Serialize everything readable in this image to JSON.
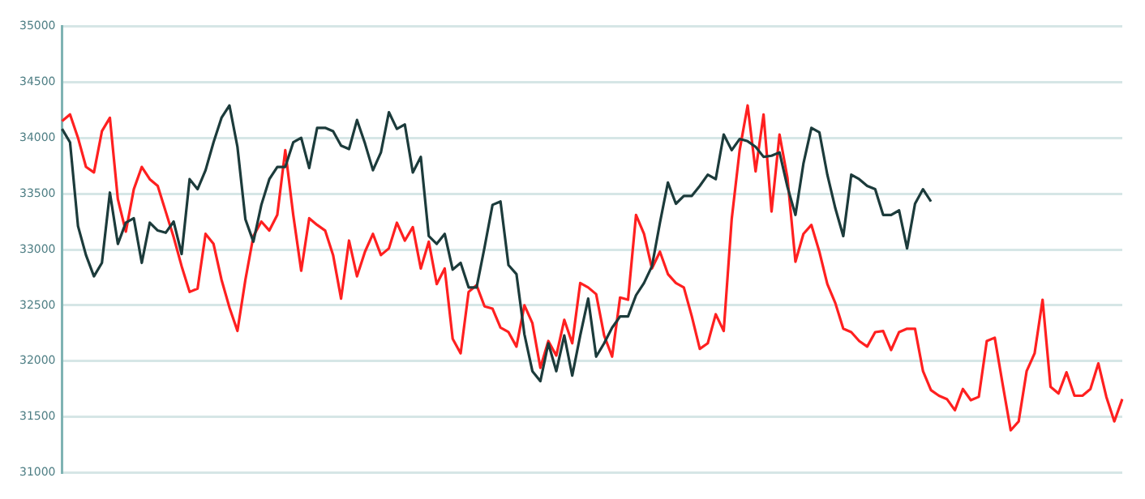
{
  "chart_data": {
    "type": "line",
    "categories": [
      null,
      null,
      null,
      null,
      null,
      null,
      null,
      null,
      null,
      null,
      null,
      null,
      null,
      null,
      null,
      null,
      null,
      null,
      null,
      null,
      null,
      null,
      null,
      null,
      null,
      null,
      null,
      null,
      null,
      null,
      null,
      null,
      null,
      null,
      null,
      null,
      null,
      null,
      null,
      null,
      null,
      null,
      null,
      null,
      null,
      null,
      null,
      null,
      null,
      null,
      null,
      null,
      null,
      null,
      null,
      null,
      null,
      null,
      null,
      null,
      null,
      null,
      null,
      null,
      null,
      null,
      null,
      null,
      null,
      null,
      null,
      null,
      null,
      null,
      null,
      null,
      null,
      null,
      null,
      null,
      null,
      null,
      null,
      null,
      null,
      null,
      null,
      null,
      null,
      null,
      null,
      null,
      null,
      null,
      null,
      null,
      null,
      null,
      null,
      null,
      null,
      null,
      null,
      null,
      null,
      null,
      null,
      null,
      null,
      null,
      null,
      null,
      null,
      null,
      null,
      null,
      null,
      null,
      null,
      null,
      null,
      null,
      null,
      null,
      null,
      null,
      null,
      null,
      null,
      null,
      null,
      null,
      null,
      null
    ],
    "series": [
      {
        "color": "#1c3b3b",
        "values": [
          34080,
          33960,
          33210,
          32950,
          32760,
          32880,
          33510,
          33050,
          33240,
          33280,
          32880,
          33240,
          33170,
          33150,
          33250,
          32960,
          33630,
          33540,
          33710,
          33960,
          34180,
          34290,
          33920,
          33270,
          33070,
          33400,
          33630,
          33740,
          33740,
          33960,
          34000,
          33730,
          34090,
          34090,
          34060,
          33930,
          33900,
          34160,
          33950,
          33710,
          33870,
          34230,
          34080,
          34120,
          33690,
          33830,
          33120,
          33050,
          33140,
          32820,
          32880,
          32660,
          32660,
          33020,
          33400,
          33430,
          32860,
          32780,
          32240,
          31910,
          31820,
          32160,
          31910,
          32230,
          31870,
          32230,
          32560,
          32040,
          32160,
          32300,
          32400,
          32400,
          32590,
          32700,
          32850,
          33240,
          33600,
          33410,
          33480,
          33480,
          33570,
          33670,
          33630,
          34030,
          33890,
          33990,
          33970,
          33920,
          33830,
          33840,
          33870,
          33560,
          33310,
          33770,
          34090,
          34050,
          33670,
          33370,
          33120,
          33670,
          33630,
          33570,
          33540,
          33310,
          33310,
          33350,
          33010,
          33410,
          33540,
          33430,
          null,
          null,
          null,
          null,
          null,
          null,
          null,
          null,
          null,
          null,
          null,
          null,
          null,
          null,
          null,
          null,
          null,
          null,
          null,
          null,
          null,
          null,
          null,
          null
        ]
      },
      {
        "color": "#ff2020",
        "values": [
          34150,
          34210,
          34000,
          33740,
          33690,
          34060,
          34180,
          33450,
          33160,
          33540,
          33740,
          33630,
          33570,
          33340,
          33110,
          32850,
          32620,
          32650,
          33140,
          33050,
          32730,
          32480,
          32270,
          32730,
          33120,
          33250,
          33170,
          33310,
          33890,
          33310,
          32810,
          33280,
          33220,
          33170,
          32950,
          32560,
          33080,
          32760,
          32980,
          33140,
          32950,
          33010,
          33240,
          33080,
          33200,
          32830,
          33070,
          32690,
          32830,
          32200,
          32070,
          32620,
          32680,
          32490,
          32470,
          32300,
          32260,
          32130,
          32500,
          32340,
          31940,
          32180,
          32050,
          32370,
          32160,
          32700,
          32660,
          32600,
          32230,
          32040,
          32570,
          32550,
          33310,
          33140,
          32830,
          32980,
          32780,
          32700,
          32660,
          32400,
          32110,
          32160,
          32420,
          32270,
          33270,
          33890,
          34290,
          33700,
          34210,
          33340,
          34030,
          33640,
          32890,
          33140,
          33220,
          32980,
          32690,
          32520,
          32290,
          32260,
          32180,
          32130,
          32260,
          32270,
          32100,
          32260,
          32290,
          32290,
          31910,
          31740,
          31690,
          31660,
          31560,
          31750,
          31650,
          31680,
          32180,
          32210,
          31790,
          31380,
          31460,
          31910,
          32070,
          32550,
          31770,
          31710,
          31900,
          31690,
          31690,
          31750,
          31980,
          31680,
          31460,
          31660
        ]
      }
    ],
    "ylim": [
      31000,
      35000
    ],
    "yticks": [
      31000,
      31500,
      32000,
      32500,
      33000,
      33500,
      34000,
      34500,
      35000
    ],
    "grid": "y",
    "legend": false,
    "marker": "none",
    "line_style": "solid",
    "tick_labels": "y"
  }
}
